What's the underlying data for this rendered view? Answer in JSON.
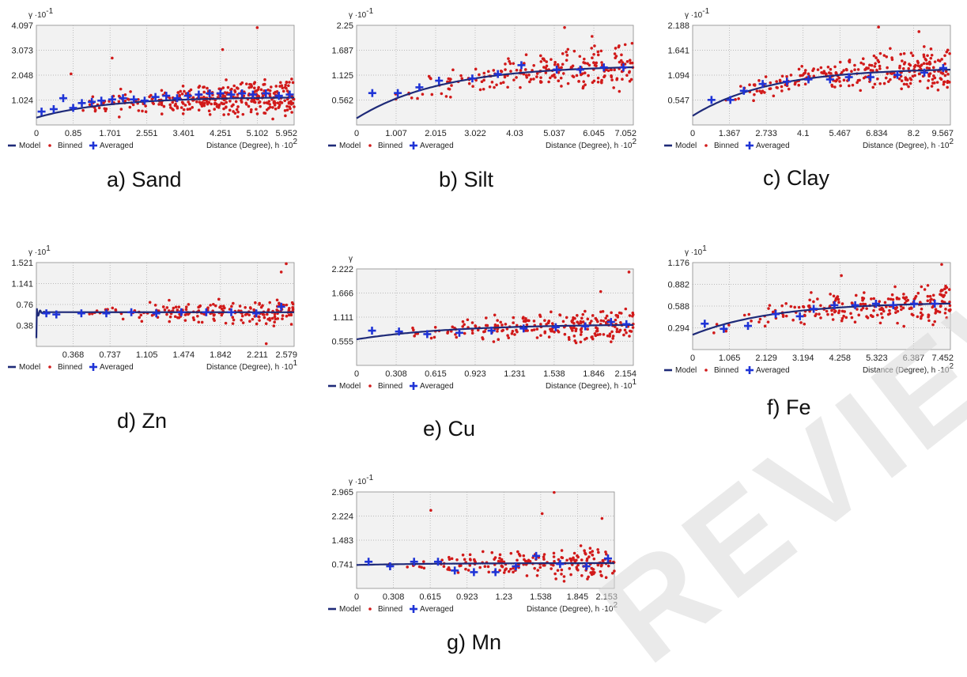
{
  "colors": {
    "model": "#1e2a78",
    "binned": "#d11a1a",
    "averaged": "#1f34d6",
    "plot_bg": "#f2f2f2",
    "grid": "#a8a8a8",
    "watermark": "#d9d9d9"
  },
  "legend": {
    "model": "Model",
    "binned": "Binned",
    "averaged": "Averaged"
  },
  "watermark_text": "REVIEW",
  "chart_data": [
    {
      "id": "a",
      "type": "scatter",
      "caption": "a) Sand",
      "ylabel": "γ ·10",
      "yexp": "-1",
      "xlabel": "Distance (Degree), h ·10",
      "xexp": "2",
      "xlim": [
        0,
        5.952
      ],
      "ylim": [
        0,
        4.097
      ],
      "xticks": [
        "0",
        "0.85",
        "1.701",
        "2.551",
        "3.401",
        "4.251",
        "5.102",
        "5.952"
      ],
      "yticks": [
        "1.024",
        "2.048",
        "3.073",
        "4.097"
      ],
      "model": {
        "nugget": 0.3,
        "sill": 1.15,
        "range": 5.0
      },
      "averaged": [
        [
          0.12,
          0.55
        ],
        [
          0.4,
          0.65
        ],
        [
          0.62,
          1.1
        ],
        [
          0.85,
          0.7
        ],
        [
          1.05,
          0.9
        ],
        [
          1.28,
          0.95
        ],
        [
          1.5,
          1.0
        ],
        [
          1.75,
          1.05
        ],
        [
          2.0,
          1.1
        ],
        [
          2.25,
          1.05
        ],
        [
          2.5,
          1.0
        ],
        [
          2.75,
          1.15
        ],
        [
          3.0,
          1.2
        ],
        [
          3.25,
          1.1
        ],
        [
          3.5,
          1.2
        ],
        [
          3.75,
          1.25
        ],
        [
          4.0,
          1.3
        ],
        [
          4.25,
          1.3
        ],
        [
          4.5,
          1.25
        ],
        [
          4.75,
          1.3
        ],
        [
          5.0,
          1.25
        ],
        [
          5.3,
          1.3
        ],
        [
          5.6,
          1.2
        ],
        [
          5.85,
          1.25
        ]
      ],
      "binned_count": 380,
      "binned_seed": 11,
      "binned_spread": 1.1,
      "binned_outliers": [
        [
          5.1,
          4.0
        ],
        [
          4.3,
          3.1
        ],
        [
          1.75,
          2.75
        ],
        [
          0.8,
          2.1
        ]
      ]
    },
    {
      "id": "b",
      "type": "scatter",
      "caption": "b) Silt",
      "ylabel": "γ ·10",
      "yexp": "-1",
      "xlabel": "Distance (Degree), h ·10",
      "xexp": "2",
      "xlim": [
        0,
        7.052
      ],
      "ylim": [
        0,
        2.25
      ],
      "xticks": [
        "0",
        "1.007",
        "2.015",
        "3.022",
        "4.03",
        "5.037",
        "6.045",
        "7.052"
      ],
      "yticks": [
        "0.562",
        "1.125",
        "1.687",
        "2.25"
      ],
      "model": {
        "nugget": 0.15,
        "sill": 1.35,
        "range": 6.5
      },
      "averaged": [
        [
          0.4,
          0.72
        ],
        [
          1.05,
          0.72
        ],
        [
          1.6,
          0.85
        ],
        [
          2.1,
          1.0
        ],
        [
          2.95,
          1.05
        ],
        [
          3.6,
          1.15
        ],
        [
          4.2,
          1.35
        ],
        [
          5.1,
          1.25
        ],
        [
          5.7,
          1.25
        ],
        [
          6.3,
          1.3
        ],
        [
          6.8,
          1.3
        ]
      ],
      "binned_count": 230,
      "binned_seed": 23,
      "binned_spread": 0.75,
      "binned_outliers": [
        [
          5.3,
          2.2
        ],
        [
          6.0,
          2.0
        ]
      ]
    },
    {
      "id": "c",
      "type": "scatter",
      "caption": "c) Clay",
      "ylabel": "γ ·10",
      "yexp": "-1",
      "xlabel": "Distance (Degree), h ·10",
      "xexp": "2",
      "xlim": [
        0,
        9.567
      ],
      "ylim": [
        0,
        2.188
      ],
      "xticks": [
        "0",
        "1.367",
        "2.733",
        "4.1",
        "5.467",
        "6.834",
        "8.2",
        "9.567"
      ],
      "yticks": [
        "0.547",
        "1.094",
        "1.641",
        "2.188"
      ],
      "model": {
        "nugget": 0.2,
        "sill": 1.25,
        "range": 8.5
      },
      "averaged": [
        [
          0.7,
          0.55
        ],
        [
          1.4,
          0.55
        ],
        [
          1.9,
          0.75
        ],
        [
          2.6,
          0.9
        ],
        [
          3.5,
          0.95
        ],
        [
          4.3,
          1.0
        ],
        [
          5.1,
          1.0
        ],
        [
          5.8,
          1.05
        ],
        [
          6.6,
          1.05
        ],
        [
          7.6,
          1.1
        ],
        [
          8.6,
          1.15
        ],
        [
          9.3,
          1.25
        ]
      ],
      "binned_count": 280,
      "binned_seed": 37,
      "binned_spread": 0.65,
      "binned_outliers": [
        [
          6.9,
          2.15
        ],
        [
          8.4,
          2.05
        ]
      ]
    },
    {
      "id": "d",
      "type": "scatter",
      "caption": "d) Zn",
      "ylabel": "γ ·10",
      "yexp": "1",
      "xlabel": "Distance (Degree), h ·10",
      "xexp": "1",
      "xlim": [
        0,
        2.579
      ],
      "ylim": [
        0,
        1.521
      ],
      "xticks": [
        "0.368",
        "0.737",
        "1.105",
        "1.474",
        "1.842",
        "2.211",
        "2.579"
      ],
      "xtickvals": [
        0.368,
        0.737,
        1.105,
        1.474,
        1.842,
        2.211,
        2.579
      ],
      "yticks": [
        "0.38",
        "0.76",
        "1.141",
        "1.521"
      ],
      "model": {
        "nugget": 0.62,
        "sill": 0.62,
        "range": 0.01,
        "oscillate": true
      },
      "averaged": [
        [
          0.1,
          0.6
        ],
        [
          0.2,
          0.58
        ],
        [
          0.45,
          0.6
        ],
        [
          0.7,
          0.6
        ],
        [
          0.95,
          0.62
        ],
        [
          1.2,
          0.6
        ],
        [
          1.45,
          0.62
        ],
        [
          1.7,
          0.62
        ],
        [
          1.95,
          0.62
        ],
        [
          2.2,
          0.6
        ],
        [
          2.45,
          0.72
        ]
      ],
      "binned_count": 200,
      "binned_seed": 41,
      "binned_spread": 0.35,
      "binned_outliers": [
        [
          2.5,
          1.5
        ],
        [
          2.45,
          1.35
        ],
        [
          2.3,
          0.05
        ]
      ]
    },
    {
      "id": "e",
      "type": "scatter",
      "caption": "e) Cu",
      "ylabel": "γ",
      "yexp": "",
      "xlabel": "Distance (Degree), h ·10",
      "xexp": "1",
      "xlim": [
        0,
        2.154
      ],
      "ylim": [
        0,
        2.222
      ],
      "xticks": [
        "0",
        "0.308",
        "0.615",
        "0.923",
        "1.231",
        "1.538",
        "1.846",
        "2.154"
      ],
      "yticks": [
        "0.555",
        "1.111",
        "1.666",
        "2.222"
      ],
      "model": {
        "nugget": 0.6,
        "sill": 0.95,
        "range": 2.2
      },
      "averaged": [
        [
          0.12,
          0.8
        ],
        [
          0.33,
          0.78
        ],
        [
          0.55,
          0.72
        ],
        [
          0.8,
          0.75
        ],
        [
          1.05,
          0.8
        ],
        [
          1.3,
          0.85
        ],
        [
          1.55,
          0.88
        ],
        [
          1.78,
          0.9
        ],
        [
          1.98,
          1.0
        ],
        [
          2.1,
          0.95
        ]
      ],
      "binned_count": 230,
      "binned_seed": 53,
      "binned_spread": 0.6,
      "binned_outliers": [
        [
          2.12,
          2.15
        ],
        [
          1.9,
          1.7
        ]
      ]
    },
    {
      "id": "f",
      "type": "scatter",
      "caption": "f) Fe",
      "ylabel": "γ ·10",
      "yexp": "1",
      "xlabel": "Distance (Degree), h ·10",
      "xexp": "2",
      "xlim": [
        0,
        7.452
      ],
      "ylim": [
        0,
        1.176
      ],
      "xticks": [
        "0",
        "1.065",
        "2.129",
        "3.194",
        "4.258",
        "5.323",
        "6.387",
        "7.452"
      ],
      "yticks": [
        "0.294",
        "0.588",
        "0.882",
        "1.176"
      ],
      "model": {
        "nugget": 0.2,
        "sill": 0.64,
        "range": 7.0
      },
      "averaged": [
        [
          0.35,
          0.35
        ],
        [
          0.9,
          0.28
        ],
        [
          1.6,
          0.32
        ],
        [
          2.4,
          0.48
        ],
        [
          3.1,
          0.45
        ],
        [
          3.5,
          0.55
        ],
        [
          4.1,
          0.6
        ],
        [
          4.7,
          0.6
        ],
        [
          5.3,
          0.62
        ],
        [
          5.8,
          0.6
        ],
        [
          6.4,
          0.62
        ],
        [
          7.0,
          0.62
        ]
      ],
      "binned_count": 230,
      "binned_seed": 67,
      "binned_spread": 0.4,
      "binned_outliers": [
        [
          7.2,
          1.15
        ],
        [
          4.3,
          1.0
        ]
      ]
    },
    {
      "id": "g",
      "type": "scatter",
      "caption": "g) Mn",
      "ylabel": "γ ·10",
      "yexp": "-1",
      "xlabel": "Distance (Degree), h ·10",
      "xexp": "2",
      "xlim": [
        0,
        2.153
      ],
      "ylim": [
        0,
        2.965
      ],
      "xticks": [
        "0",
        "0.308",
        "0.615",
        "0.923",
        "1.23",
        "1.538",
        "1.845",
        "2.153"
      ],
      "yticks": [
        "0.741",
        "1.483",
        "2.224",
        "2.965"
      ],
      "model": {
        "nugget": 0.72,
        "sill": 0.78,
        "range": 2.0
      },
      "averaged": [
        [
          0.1,
          0.82
        ],
        [
          0.28,
          0.68
        ],
        [
          0.48,
          0.82
        ],
        [
          0.68,
          0.82
        ],
        [
          0.82,
          0.55
        ],
        [
          0.98,
          0.5
        ],
        [
          1.16,
          0.5
        ],
        [
          1.33,
          0.68
        ],
        [
          1.5,
          1.0
        ],
        [
          1.7,
          0.75
        ],
        [
          1.92,
          0.68
        ],
        [
          2.1,
          0.92
        ]
      ],
      "binned_count": 200,
      "binned_seed": 79,
      "binned_spread": 0.75,
      "binned_outliers": [
        [
          1.65,
          2.95
        ],
        [
          0.62,
          2.4
        ],
        [
          1.55,
          2.3
        ],
        [
          2.05,
          2.15
        ]
      ]
    }
  ]
}
